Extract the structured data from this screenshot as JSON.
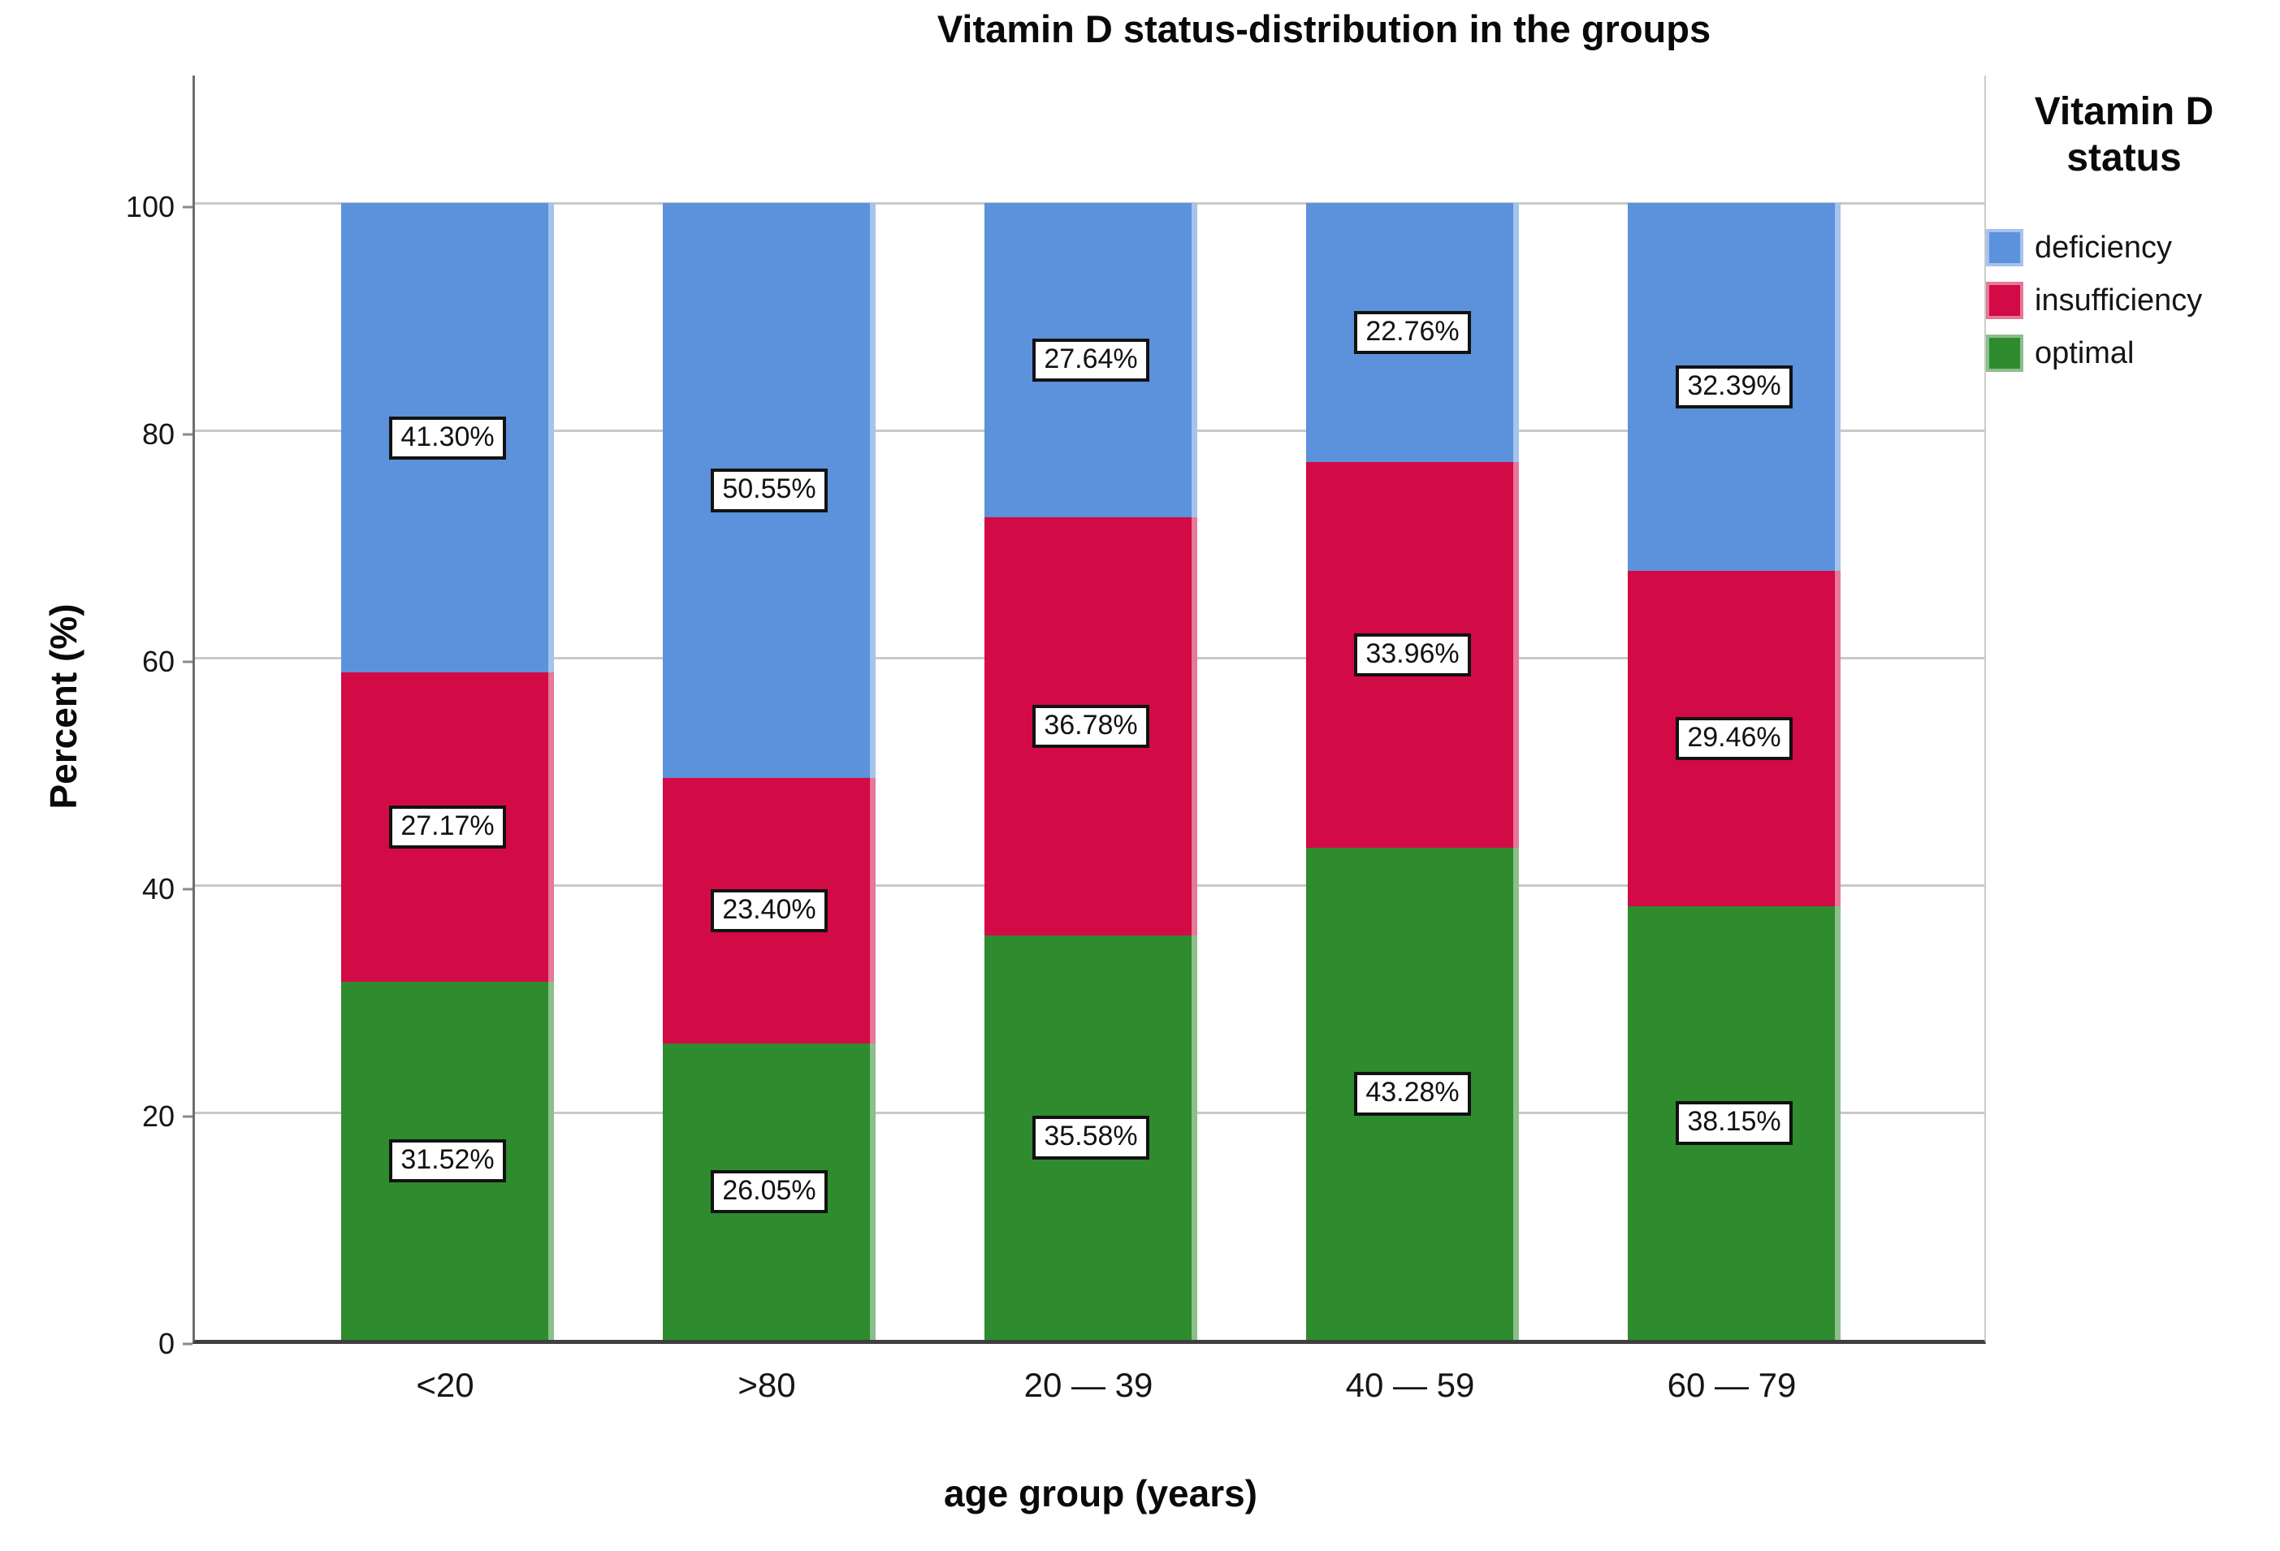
{
  "chart_data": {
    "type": "bar",
    "stacked": true,
    "title": "Vitamin D status-distribution in the groups",
    "xlabel": "age group (years)",
    "ylabel": "Percent (%)",
    "legend_title": "Vitamin D status",
    "legend_position": "right",
    "grid": true,
    "ylim": [
      0,
      100
    ],
    "yticks": [
      0,
      20,
      40,
      60,
      80,
      100
    ],
    "categories": [
      "<20",
      ">80",
      "20 — 39",
      "40 — 59",
      "60 — 79"
    ],
    "series": [
      {
        "name": "deficiency",
        "color": "#5B92DB",
        "values": [
          41.3,
          50.55,
          27.64,
          22.76,
          32.39
        ]
      },
      {
        "name": "insufficiency",
        "color": "#D20A46",
        "values": [
          27.17,
          23.4,
          36.78,
          33.96,
          29.46
        ]
      },
      {
        "name": "optimal",
        "color": "#2E8B2E",
        "values": [
          31.52,
          26.05,
          35.58,
          43.28,
          38.15
        ]
      }
    ],
    "value_label_format": "0.00%"
  }
}
